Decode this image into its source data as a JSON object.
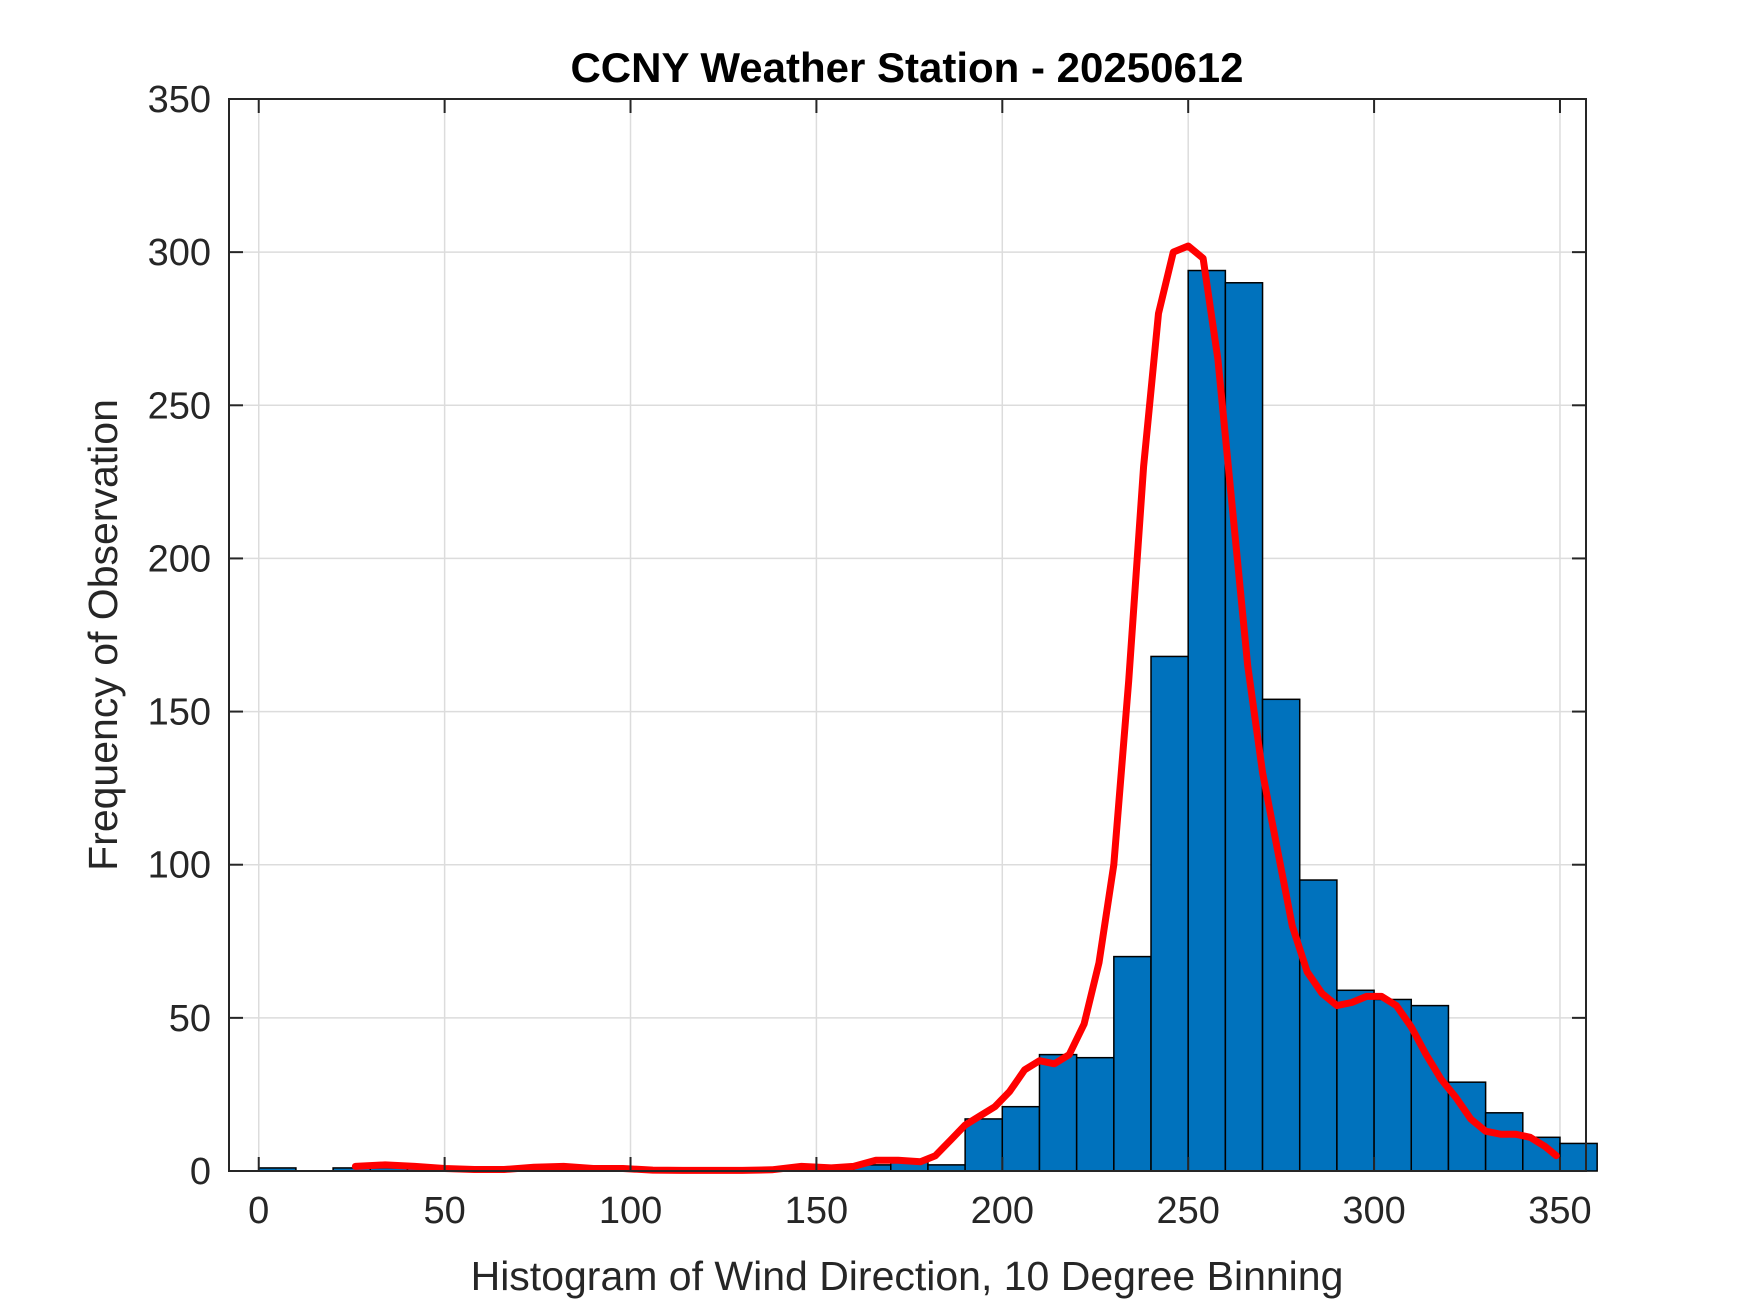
{
  "chart_data": {
    "type": "bar",
    "title": "CCNY Weather Station - 20250612",
    "xlabel": "Histogram of Wind Direction, 10 Degree Binning",
    "ylabel": "Frequency of Observation",
    "xlim": [
      -8,
      357
    ],
    "ylim": [
      0,
      350
    ],
    "xticks": [
      0,
      50,
      100,
      150,
      200,
      250,
      300,
      350
    ],
    "yticks": [
      0,
      50,
      100,
      150,
      200,
      250,
      300,
      350
    ],
    "grid": true,
    "bin_width": 10,
    "bin_edges": [
      0,
      10,
      20,
      30,
      40,
      50,
      60,
      70,
      80,
      90,
      100,
      110,
      120,
      130,
      140,
      150,
      160,
      170,
      180,
      190,
      200,
      210,
      220,
      230,
      240,
      250,
      260,
      270,
      280,
      290,
      300,
      310,
      320,
      330,
      340,
      350
    ],
    "values": [
      1,
      0,
      1,
      1,
      1,
      1,
      0,
      1,
      1,
      1,
      0,
      0,
      0,
      0,
      1,
      1,
      2,
      3,
      2,
      17,
      21,
      38,
      37,
      70,
      168,
      294,
      290,
      154,
      95,
      59,
      56,
      54,
      29,
      19,
      11,
      9
    ],
    "bar_color": "#0072BD",
    "curve_color": "#FF0000",
    "curve": {
      "x": [
        26,
        34,
        42,
        50,
        58,
        66,
        74,
        82,
        90,
        98,
        106,
        114,
        122,
        130,
        138,
        146,
        154,
        160,
        166,
        172,
        178,
        182,
        186,
        190,
        194,
        198,
        202,
        206,
        210,
        214,
        218,
        222,
        226,
        230,
        234,
        238,
        242,
        246,
        250,
        254,
        258,
        262,
        266,
        270,
        274,
        278,
        282,
        286,
        290,
        294,
        298,
        302,
        306,
        310,
        314,
        318,
        322,
        326,
        330,
        334,
        338,
        342,
        346,
        349
      ],
      "y": [
        1.5,
        2,
        1.5,
        0.8,
        0.5,
        0.5,
        1.2,
        1.5,
        0.8,
        0.8,
        0.3,
        0.2,
        0.2,
        0.2,
        0.4,
        1.5,
        1,
        1.5,
        3.5,
        3.5,
        3,
        5,
        10,
        15,
        18,
        21,
        26,
        33,
        36,
        35,
        38,
        48,
        68,
        100,
        160,
        230,
        280,
        300,
        302,
        298,
        265,
        215,
        165,
        130,
        105,
        80,
        65,
        58,
        54,
        55,
        57,
        57,
        54,
        47,
        38,
        30,
        24,
        17,
        13,
        12,
        12,
        11,
        8,
        5
      ]
    }
  }
}
